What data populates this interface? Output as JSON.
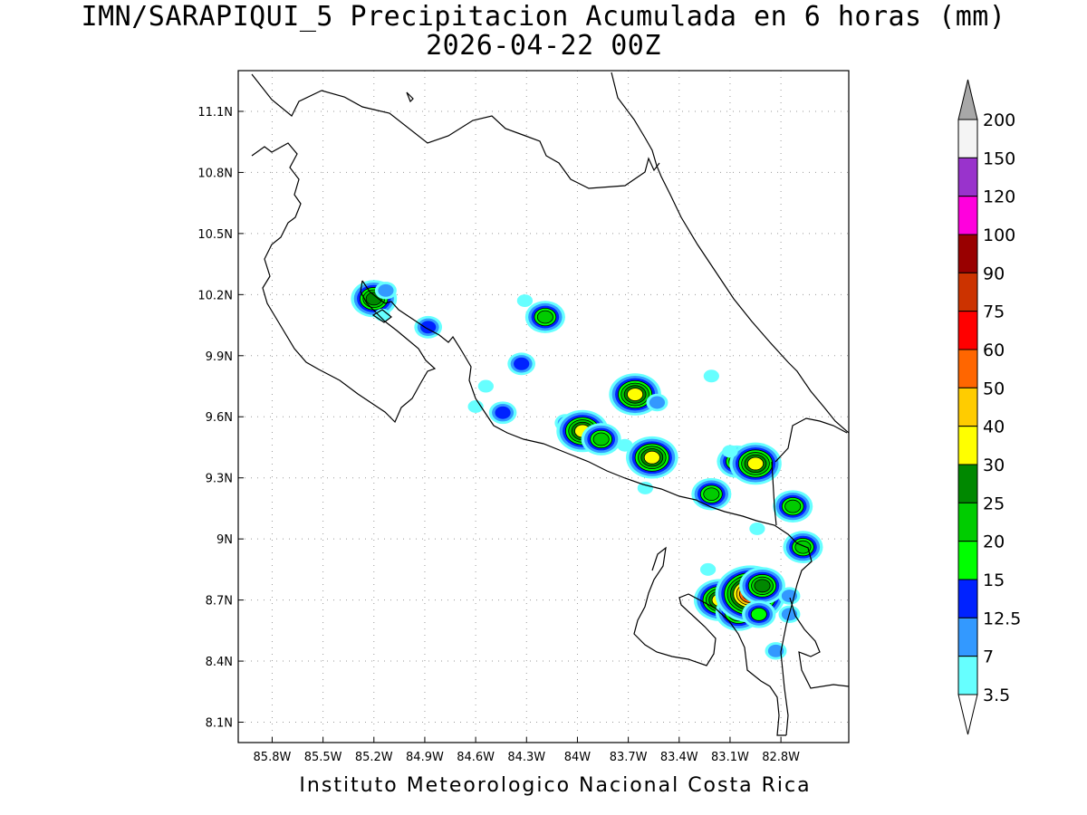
{
  "header": {
    "title_line1": "IMN/SARAPIQUI_5 Precipitacion Acumulada en 6 horas (mm)",
    "title_line2": "2026-04-22 00Z"
  },
  "footer": {
    "credit": "Instituto Meteorologico Nacional Costa Rica"
  },
  "map": {
    "lon_range": [
      -86.0,
      -82.4
    ],
    "lat_range": [
      8.0,
      11.3
    ],
    "lon_ticks": [
      "85.8W",
      "85.5W",
      "85.2W",
      "84.9W",
      "84.6W",
      "84.3W",
      "84W",
      "83.7W",
      "83.4W",
      "83.1W",
      "82.8W"
    ],
    "lon_tick_values": [
      -85.8,
      -85.5,
      -85.2,
      -84.9,
      -84.6,
      -84.3,
      -84.0,
      -83.7,
      -83.4,
      -83.1,
      -82.8
    ],
    "lat_ticks": [
      "11.1N",
      "10.8N",
      "10.5N",
      "10.2N",
      "9.9N",
      "9.6N",
      "9.3N",
      "9N",
      "8.7N",
      "8.4N",
      "8.1N"
    ],
    "lat_tick_values": [
      11.1,
      10.8,
      10.5,
      10.2,
      9.9,
      9.6,
      9.3,
      9.0,
      8.7,
      8.4,
      8.1
    ],
    "grid": "dotted"
  },
  "colorbar": {
    "labels": [
      "3.5",
      "7",
      "12.5",
      "15",
      "20",
      "25",
      "30",
      "40",
      "50",
      "60",
      "75",
      "90",
      "100",
      "120",
      "150",
      "200"
    ],
    "colors": [
      "#66ffff",
      "#3399ff",
      "#0022ff",
      "#00ff00",
      "#00cc00",
      "#008800",
      "#ffff00",
      "#ffcc00",
      "#ff6600",
      "#ff0000",
      "#cc3300",
      "#990000",
      "#ff00dd",
      "#9933cc",
      "#f4f4f4"
    ],
    "over_color": "#a8a8a8",
    "under_color": "#ffffff"
  },
  "precip_cells": [
    {
      "lon": -85.2,
      "lat": 10.18,
      "peak": 27
    },
    {
      "lon": -85.13,
      "lat": 10.22,
      "peak": 8
    },
    {
      "lon": -85.15,
      "lat": 10.1,
      "peak": 4
    },
    {
      "lon": -84.88,
      "lat": 10.04,
      "peak": 13
    },
    {
      "lon": -84.19,
      "lat": 10.09,
      "peak": 24
    },
    {
      "lon": -84.31,
      "lat": 10.17,
      "peak": 4
    },
    {
      "lon": -84.33,
      "lat": 9.86,
      "peak": 14
    },
    {
      "lon": -84.44,
      "lat": 9.62,
      "peak": 13
    },
    {
      "lon": -84.54,
      "lat": 9.75,
      "peak": 6
    },
    {
      "lon": -84.6,
      "lat": 9.65,
      "peak": 5
    },
    {
      "lon": -84.07,
      "lat": 9.57,
      "peak": 9
    },
    {
      "lon": -83.97,
      "lat": 9.53,
      "peak": 35
    },
    {
      "lon": -83.86,
      "lat": 9.49,
      "peak": 24
    },
    {
      "lon": -83.66,
      "lat": 9.71,
      "peak": 33
    },
    {
      "lon": -83.53,
      "lat": 9.67,
      "peak": 12
    },
    {
      "lon": -83.56,
      "lat": 9.4,
      "peak": 34
    },
    {
      "lon": -83.21,
      "lat": 9.22,
      "peak": 22
    },
    {
      "lon": -83.21,
      "lat": 9.8,
      "peak": 5
    },
    {
      "lon": -83.06,
      "lat": 9.38,
      "peak": 22
    },
    {
      "lon": -82.95,
      "lat": 9.37,
      "peak": 33
    },
    {
      "lon": -83.1,
      "lat": 9.43,
      "peak": 5
    },
    {
      "lon": -82.73,
      "lat": 9.16,
      "peak": 22
    },
    {
      "lon": -82.67,
      "lat": 8.96,
      "peak": 20
    },
    {
      "lon": -82.94,
      "lat": 9.05,
      "peak": 4
    },
    {
      "lon": -83.16,
      "lat": 8.7,
      "peak": 35
    },
    {
      "lon": -83.05,
      "lat": 8.64,
      "peak": 25
    },
    {
      "lon": -82.98,
      "lat": 8.73,
      "peak": 70
    },
    {
      "lon": -82.91,
      "lat": 8.77,
      "peak": 28
    },
    {
      "lon": -82.93,
      "lat": 8.63,
      "peak": 15
    },
    {
      "lon": -82.75,
      "lat": 8.72,
      "peak": 9
    },
    {
      "lon": -82.75,
      "lat": 8.63,
      "peak": 12
    },
    {
      "lon": -82.83,
      "lat": 8.45,
      "peak": 8
    },
    {
      "lon": -83.23,
      "lat": 8.85,
      "peak": 5
    },
    {
      "lon": -83.6,
      "lat": 9.25,
      "peak": 4
    },
    {
      "lon": -83.72,
      "lat": 9.46,
      "peak": 4
    }
  ]
}
